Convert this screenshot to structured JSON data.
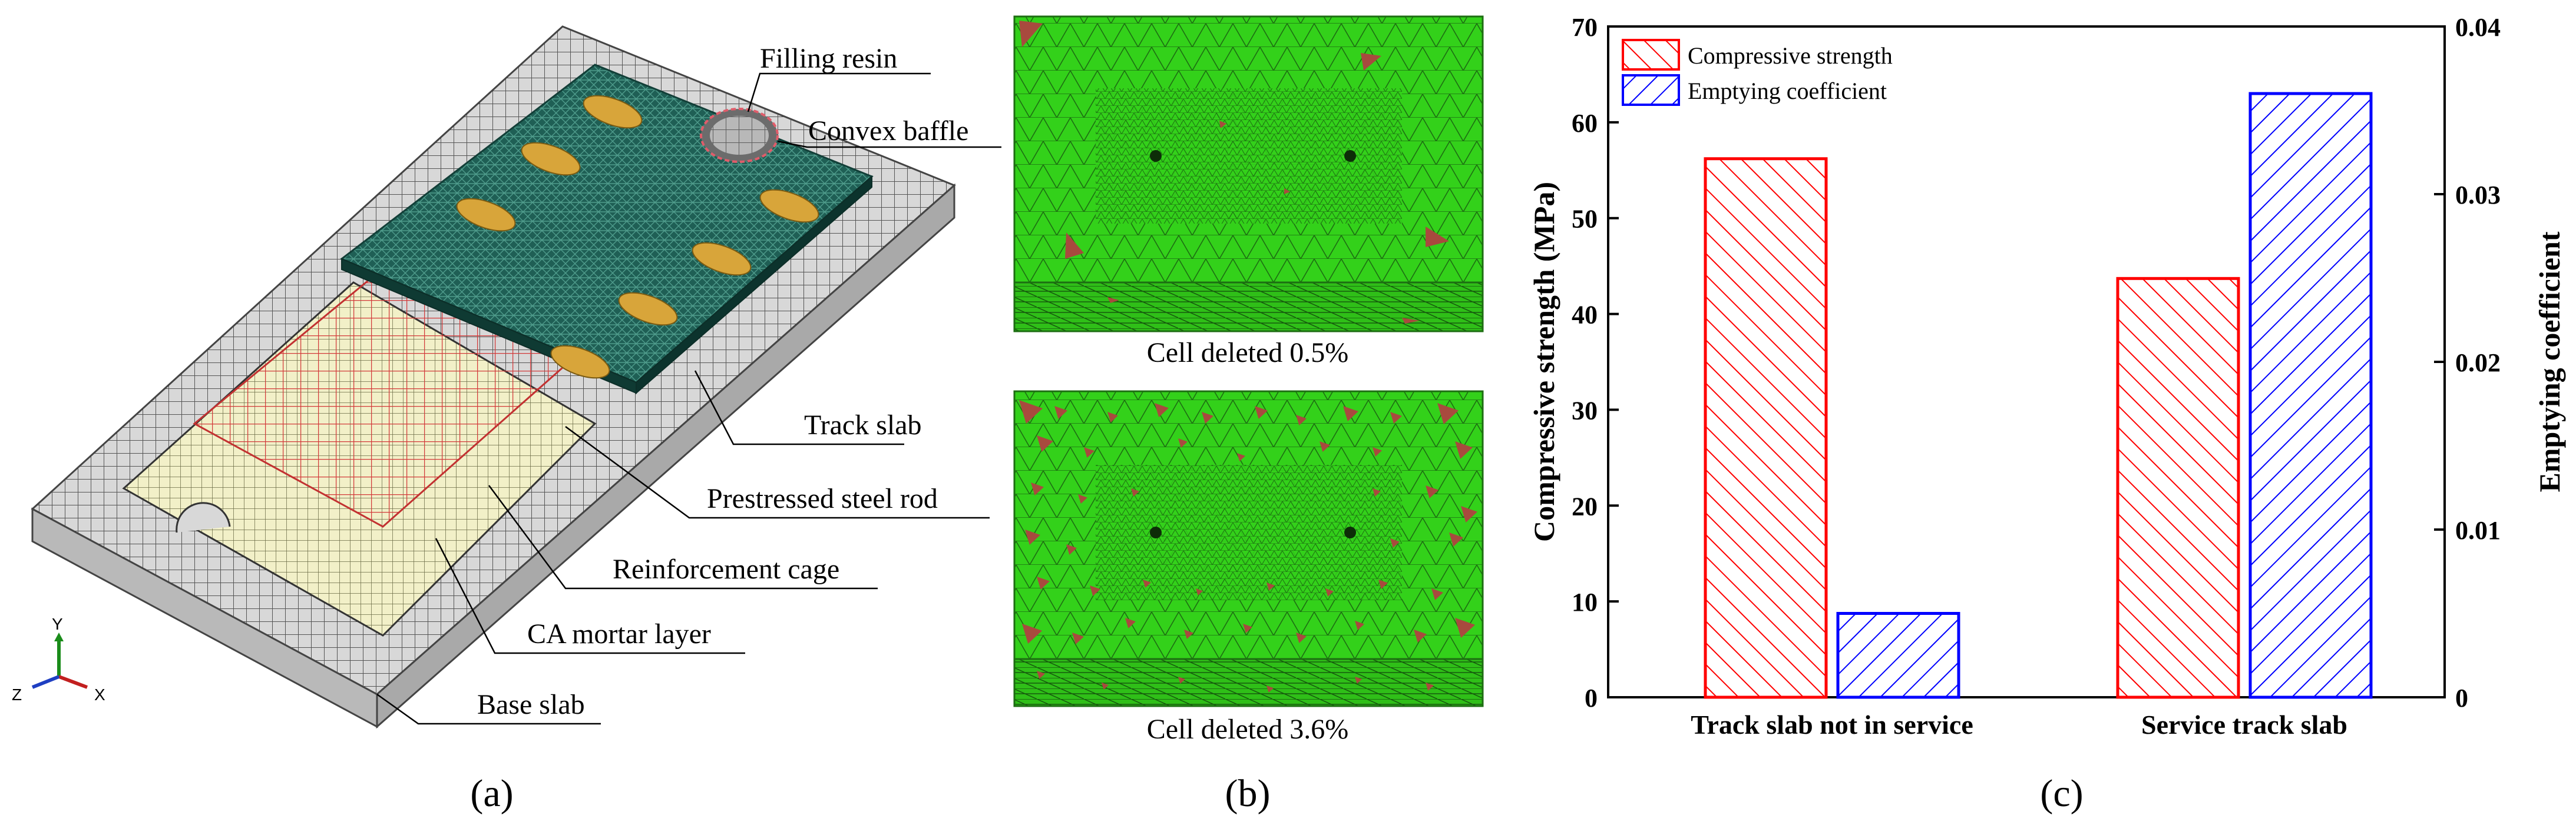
{
  "panel_a": {
    "caption": "(a)",
    "labels": {
      "filling_resin": "Filling resin",
      "convex_baffle": "Convex baffle",
      "track_slab": "Track slab",
      "prestressed_steel_rod": "Prestressed steel rod",
      "reinforcement_cage": "Reinforcement cage",
      "ca_mortar_layer": "CA mortar layer",
      "base_slab": "Base slab"
    },
    "axes_triad": {
      "y": "Y",
      "z": "Z",
      "x": "X"
    }
  },
  "panel_b": {
    "caption": "(b)",
    "top_caption": "Cell deleted 0.5%",
    "bottom_caption": "Cell deleted 3.6%",
    "top_deleted_fraction": 0.005,
    "bottom_deleted_fraction": 0.036,
    "colors": {
      "mesh": "#33d11a",
      "deleted": "#a84a3e"
    }
  },
  "panel_c": {
    "caption": "(c)"
  },
  "chart_data": {
    "type": "bar",
    "categories": [
      "Track slab not in service",
      "Service track slab"
    ],
    "series": [
      {
        "name": "Compressive strength",
        "axis": "left",
        "color": "#ff0000",
        "hatch": "forward",
        "values": [
          56.2,
          43.7
        ]
      },
      {
        "name": "Emptying coefficient",
        "axis": "right",
        "color": "#0000ff",
        "hatch": "backward",
        "values": [
          0.005,
          0.036
        ]
      }
    ],
    "ylabel": "Compressive strength (MPa)",
    "ylabel_right": "Emptying coefficient",
    "ylim": [
      0,
      70
    ],
    "ylim_right": [
      0,
      0.04
    ],
    "yticks": [
      0,
      10,
      20,
      30,
      40,
      50,
      60,
      70
    ],
    "yticks_right": [
      "0",
      "0.01",
      "0.02",
      "0.03",
      "0.04"
    ],
    "legend": "top-left",
    "grid": false
  }
}
